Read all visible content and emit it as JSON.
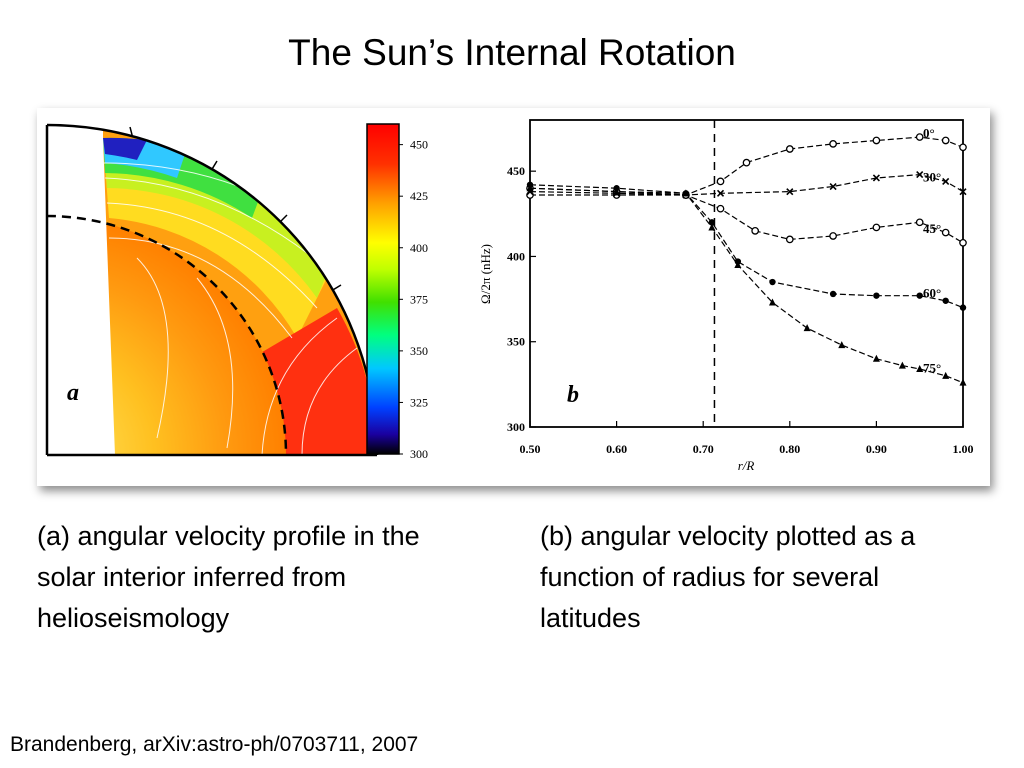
{
  "slide": {
    "title": "The Sun’s Internal Rotation",
    "caption_a": "(a) angular velocity profile in the solar interior inferred from helioseismology",
    "caption_b": "(b) angular velocity plotted as a function of radius for several latitudes",
    "citation": "Brandenberg, arXiv:astro-ph/0703711, 2007"
  },
  "panel_a": {
    "label": "a",
    "colorbar": {
      "ticks": [
        "450",
        "425",
        "400",
        "375",
        "350",
        "325",
        "300"
      ],
      "range": [
        300,
        460
      ],
      "colors": [
        "#000000",
        "#1a00a0",
        "#0040ff",
        "#00c8ff",
        "#00ff80",
        "#40e000",
        "#c0ff00",
        "#ffff00",
        "#ffa000",
        "#ff3000",
        "#ff0000"
      ]
    }
  },
  "chart_data": {
    "type": "line",
    "panel_label": "b",
    "xlabel": "r/R",
    "ylabel": "Ω/2π (nHz)",
    "xlim": [
      0.5,
      1.0
    ],
    "ylim": [
      300,
      480
    ],
    "xticks": [
      "0.50",
      "0.60",
      "0.70",
      "0.80",
      "0.90",
      "1.00"
    ],
    "yticks": [
      "300",
      "350",
      "400",
      "450"
    ],
    "tachocline_r": 0.713,
    "series": [
      {
        "name": "0°",
        "x": [
          0.5,
          0.6,
          0.68,
          0.72,
          0.75,
          0.8,
          0.85,
          0.9,
          0.95,
          0.98,
          1.0
        ],
        "y": [
          436,
          436,
          436,
          444,
          455,
          463,
          466,
          468,
          470,
          468,
          464
        ]
      },
      {
        "name": "30°",
        "x": [
          0.5,
          0.6,
          0.68,
          0.72,
          0.8,
          0.85,
          0.9,
          0.95,
          0.98,
          1.0
        ],
        "y": [
          438,
          437,
          436,
          437,
          438,
          441,
          446,
          448,
          444,
          438
        ]
      },
      {
        "name": "45°",
        "x": [
          0.5,
          0.6,
          0.68,
          0.72,
          0.76,
          0.8,
          0.85,
          0.9,
          0.95,
          0.98,
          1.0
        ],
        "y": [
          440,
          438,
          436,
          428,
          415,
          410,
          412,
          417,
          420,
          414,
          408
        ]
      },
      {
        "name": "60°",
        "x": [
          0.5,
          0.6,
          0.68,
          0.71,
          0.74,
          0.78,
          0.85,
          0.9,
          0.95,
          0.98,
          1.0
        ],
        "y": [
          442,
          440,
          437,
          420,
          397,
          385,
          378,
          377,
          377,
          374,
          370
        ]
      },
      {
        "name": "75°",
        "x": [
          0.5,
          0.6,
          0.68,
          0.71,
          0.74,
          0.78,
          0.82,
          0.86,
          0.9,
          0.93,
          0.95,
          0.98,
          1.0
        ],
        "y": [
          440,
          438,
          437,
          417,
          395,
          373,
          358,
          348,
          340,
          336,
          334,
          330,
          326
        ]
      }
    ]
  }
}
